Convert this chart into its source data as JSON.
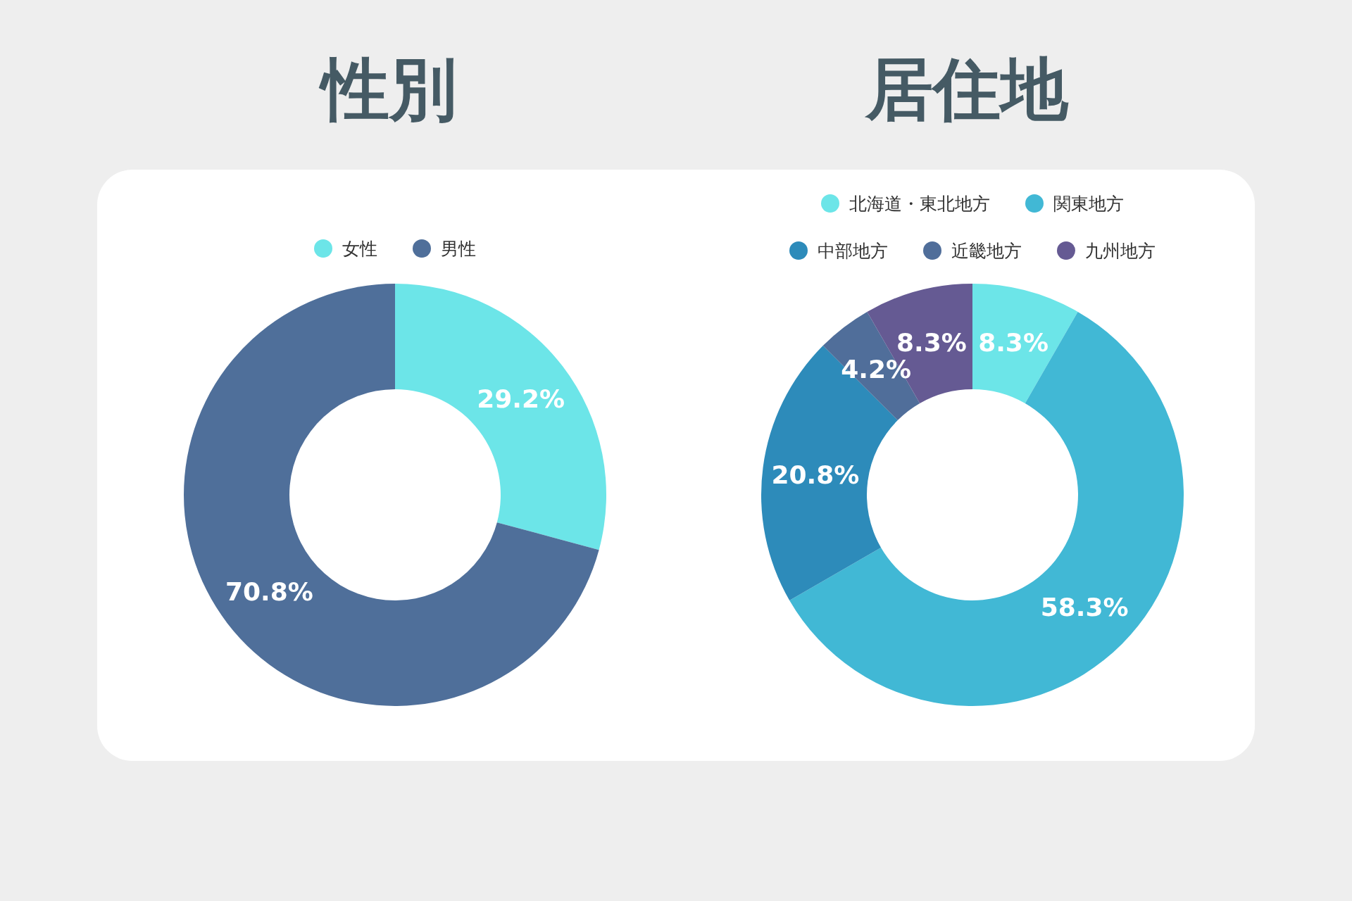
{
  "chart_data": [
    {
      "type": "donut",
      "title": "性別",
      "categories": [
        "女性",
        "男性"
      ],
      "values": [
        29.2,
        70.8
      ],
      "value_labels": [
        "29.2%",
        "70.8%"
      ],
      "colors": [
        "#6ce5e8",
        "#4f6f9a"
      ],
      "legend": "top"
    },
    {
      "type": "donut",
      "title": "居住地",
      "categories": [
        "北海道・東北地方",
        "関東地方",
        "中部地方",
        "近畿地方",
        "九州地方"
      ],
      "values": [
        8.3,
        58.3,
        20.8,
        4.2,
        8.3
      ],
      "value_labels": [
        "8.3%",
        "58.3%",
        "20.8%",
        "4.2%",
        "8.3%"
      ],
      "colors": [
        "#6ce5e8",
        "#41b8d5",
        "#2d8bba",
        "#506e9a",
        "#655a93"
      ],
      "legend": "top"
    }
  ]
}
